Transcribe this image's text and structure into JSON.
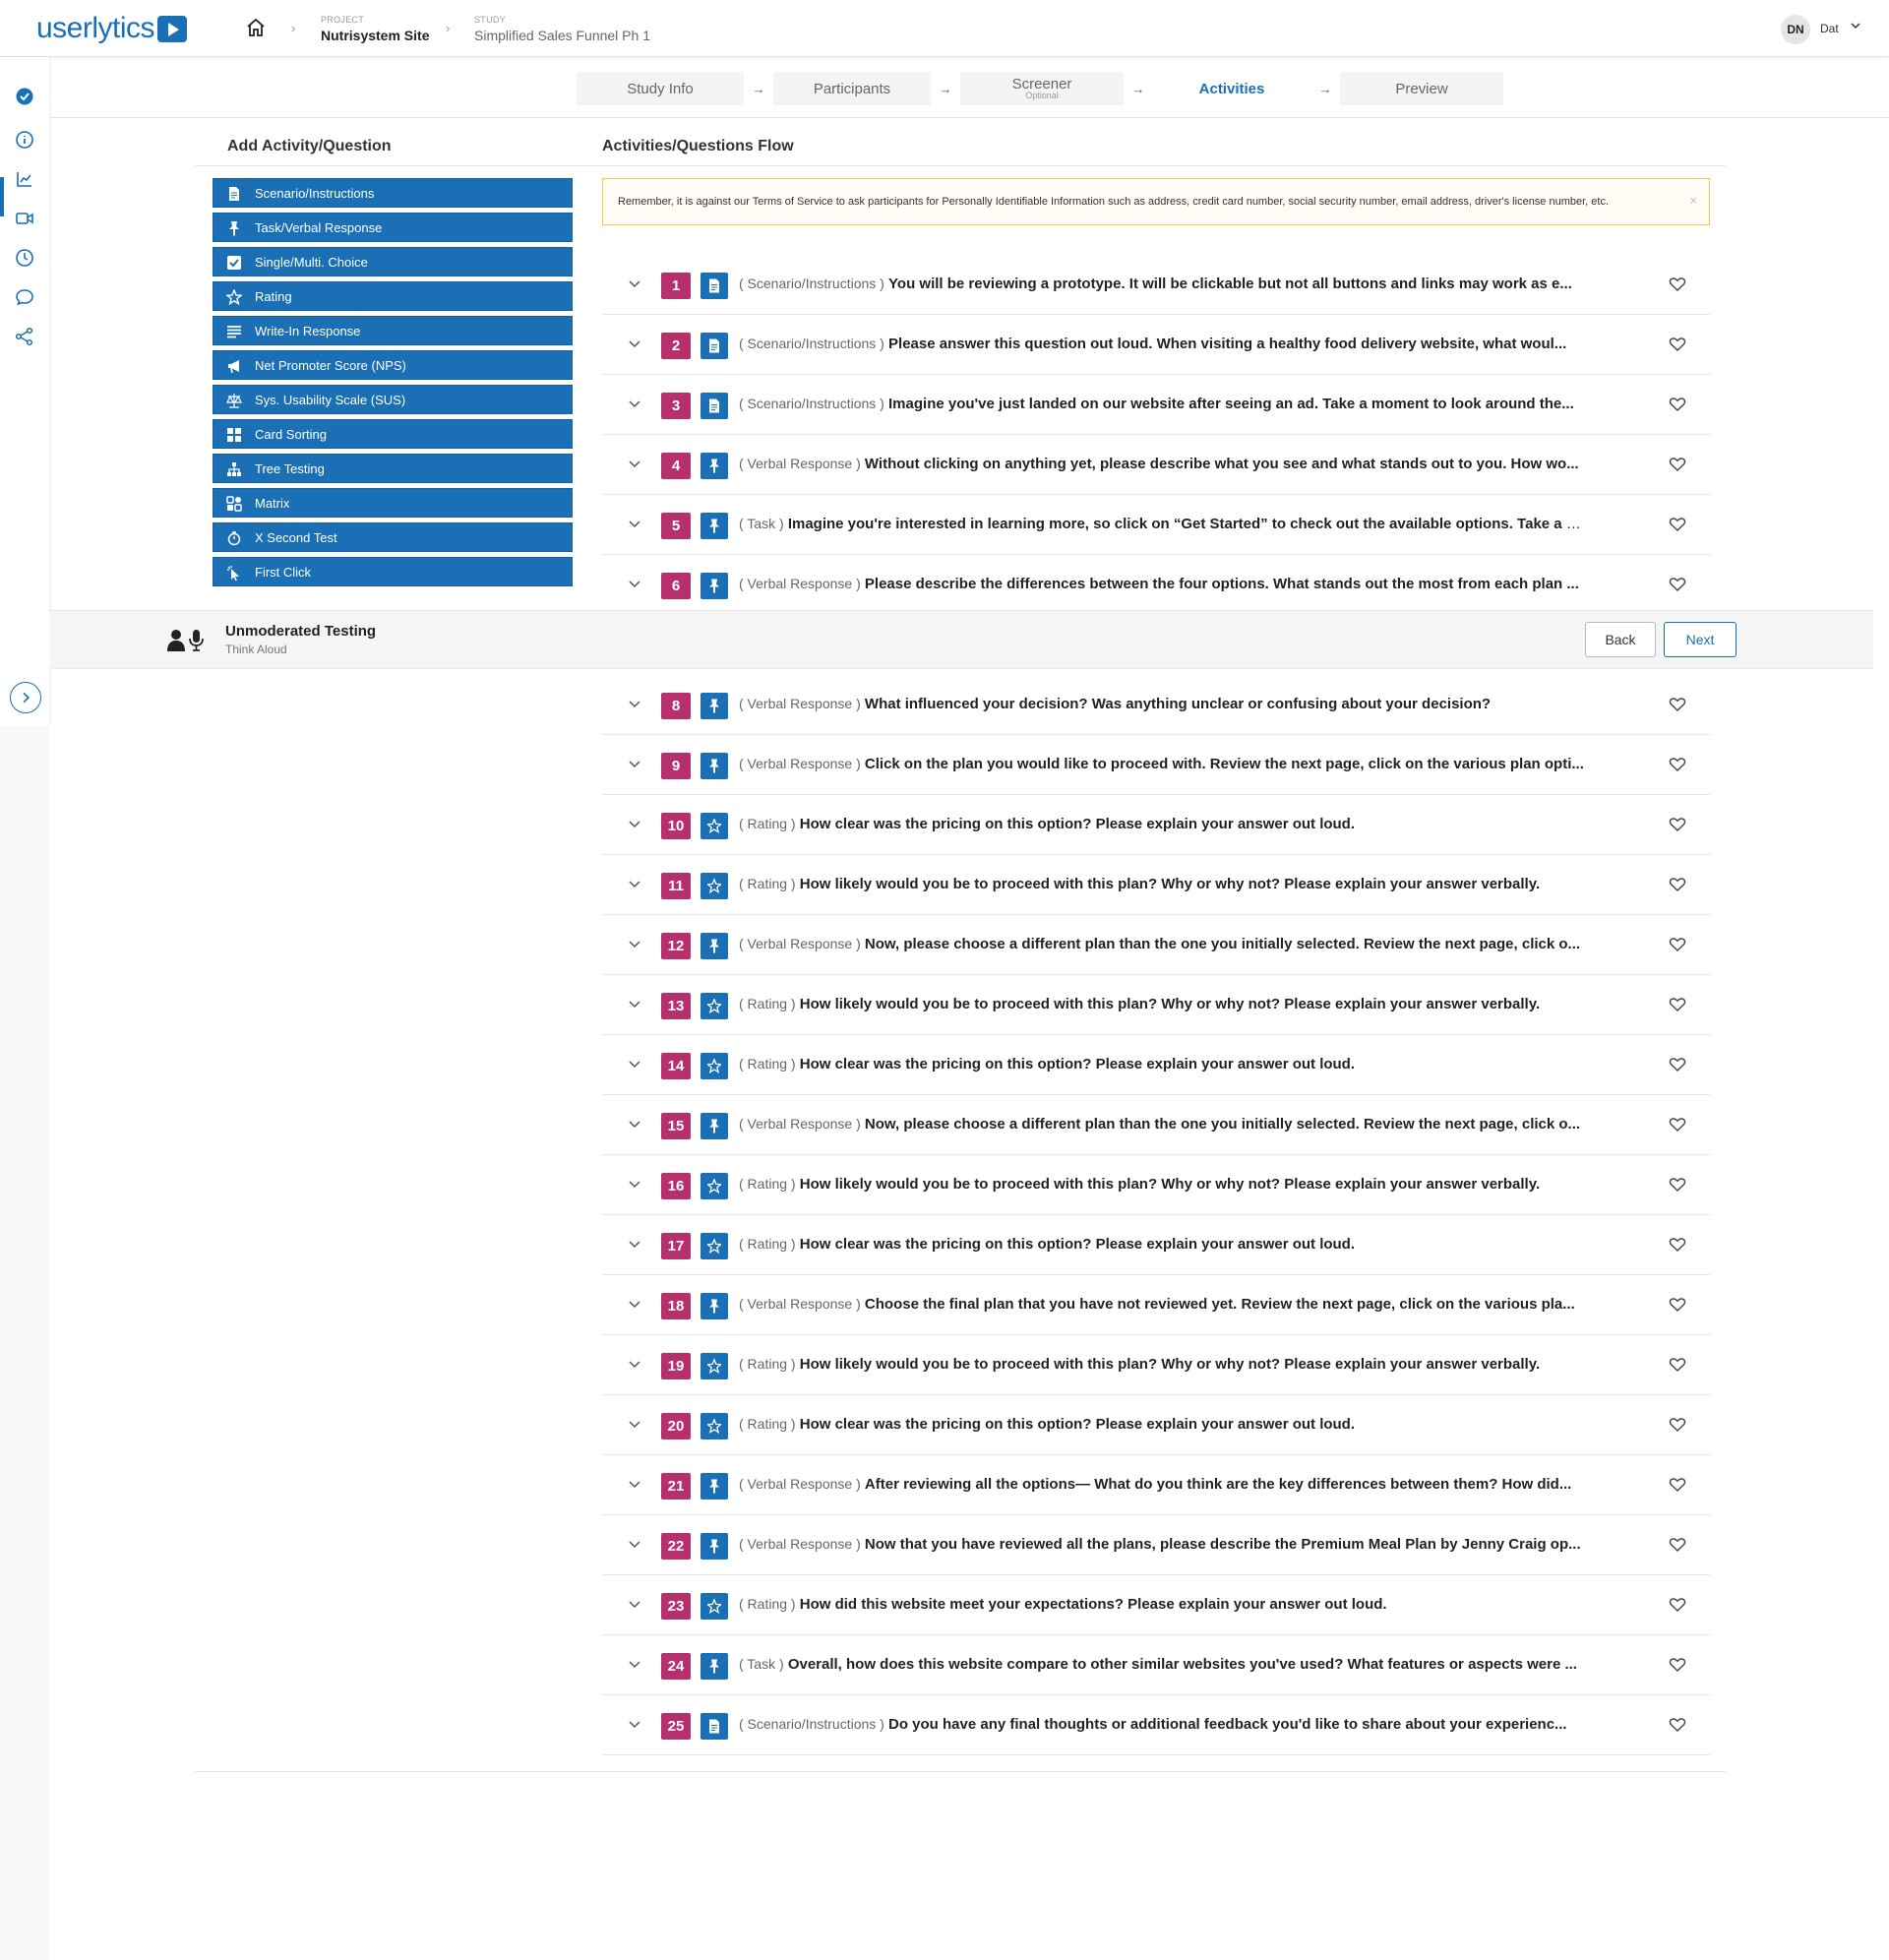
{
  "brand": {
    "logo_part1": "user",
    "logo_part2": "lytics",
    "accent": "#1a6fb5",
    "number_color": "#b6306e"
  },
  "breadcrumb": {
    "project_label": "PROJECT",
    "project_name": "Nutrisystem Site",
    "study_label": "STUDY",
    "study_name": "Simplified Sales Funnel Ph 1"
  },
  "user": {
    "initials": "DN",
    "name": "Dat"
  },
  "steps": {
    "study_info": "Study Info",
    "participants": "Participants",
    "screener": "Screener",
    "screener_sub": "Optional",
    "activities": "Activities",
    "preview": "Preview",
    "arrow": "→"
  },
  "left_panel": {
    "title": "Add Activity/Question",
    "buttons": [
      {
        "label": "Scenario/Instructions",
        "icon": "document-icon"
      },
      {
        "label": "Task/Verbal Response",
        "icon": "pin-icon"
      },
      {
        "label": "Single/Multi. Choice",
        "icon": "checkbox-icon"
      },
      {
        "label": "Rating",
        "icon": "star-icon"
      },
      {
        "label": "Write-In Response",
        "icon": "lines-icon"
      },
      {
        "label": "Net Promoter Score (NPS)",
        "icon": "megaphone-icon"
      },
      {
        "label": "Sys. Usability Scale (SUS)",
        "icon": "scale-icon"
      },
      {
        "label": "Card Sorting",
        "icon": "grid-icon"
      },
      {
        "label": "Tree Testing",
        "icon": "tree-icon"
      },
      {
        "label": "Matrix",
        "icon": "matrix-icon"
      },
      {
        "label": "X Second Test",
        "icon": "timer-icon"
      },
      {
        "label": "First Click",
        "icon": "cursor-icon"
      }
    ]
  },
  "flow": {
    "title": "Activities/Questions Flow",
    "notice": "Remember, it is against our Terms of Service to ask participants for Personally Identifiable Information such as address, credit card number, social security number, email address, driver's license number, etc.",
    "notice_close": "×",
    "items": [
      {
        "n": "1",
        "type": "( Scenario/Instructions )",
        "kind": "doc",
        "text": "You will be reviewing a prototype. It will be clickable but not all buttons and links may work as e..."
      },
      {
        "n": "2",
        "type": "( Scenario/Instructions )",
        "kind": "doc",
        "text": "Please answer this question out loud. When visiting a healthy food delivery website, what woul..."
      },
      {
        "n": "3",
        "type": "( Scenario/Instructions )",
        "kind": "doc",
        "text": "Imagine you've just landed on our website after seeing an ad. Take a moment to look around the..."
      },
      {
        "n": "4",
        "type": "( Verbal Response )",
        "kind": "pin",
        "text": "Without clicking on anything yet, please describe what you see and what stands out to you. How wo..."
      },
      {
        "n": "5",
        "type": "( Task )",
        "kind": "pin",
        "text": "Imagine you're interested in learning more, so click on “Get Started” to check out the available options. Take a m..."
      },
      {
        "n": "6",
        "type": "( Verbal Response )",
        "kind": "pin",
        "text": "Please describe the differences between the four options. What stands out the most from each plan ..."
      },
      {
        "n": "8",
        "type": "( Verbal Response )",
        "kind": "pin",
        "text": "What influenced your decision? Was anything unclear or confusing about your decision?"
      },
      {
        "n": "9",
        "type": "( Verbal Response )",
        "kind": "pin",
        "text": "Click on the plan you would like to proceed with. Review the next page, click on the various plan opti..."
      },
      {
        "n": "10",
        "type": "( Rating )",
        "kind": "star",
        "text": "How clear was the pricing on this option? Please explain your answer out loud."
      },
      {
        "n": "11",
        "type": "( Rating )",
        "kind": "star",
        "text": "How likely would you be to proceed with this plan? Why or why not? Please explain your answer verbally."
      },
      {
        "n": "12",
        "type": "( Verbal Response )",
        "kind": "pin",
        "text": "Now, please choose a different plan than the one you initially selected. Review the next page, click o..."
      },
      {
        "n": "13",
        "type": "( Rating )",
        "kind": "star",
        "text": "How likely would you be to proceed with this plan? Why or why not? Please explain your answer verbally."
      },
      {
        "n": "14",
        "type": "( Rating )",
        "kind": "star",
        "text": "How clear was the pricing on this option? Please explain your answer out loud."
      },
      {
        "n": "15",
        "type": "( Verbal Response )",
        "kind": "pin",
        "text": "Now, please choose a different plan than the one you initially selected. Review the next page, click o..."
      },
      {
        "n": "16",
        "type": "( Rating )",
        "kind": "star",
        "text": "How likely would you be to proceed with this plan? Why or why not? Please explain your answer verbally."
      },
      {
        "n": "17",
        "type": "( Rating )",
        "kind": "star",
        "text": "How clear was the pricing on this option? Please explain your answer out loud."
      },
      {
        "n": "18",
        "type": "( Verbal Response )",
        "kind": "pin",
        "text": "Choose the final plan that you have not reviewed yet. Review the next page, click on the various pla..."
      },
      {
        "n": "19",
        "type": "( Rating )",
        "kind": "star",
        "text": "How likely would you be to proceed with this plan? Why or why not? Please explain your answer verbally."
      },
      {
        "n": "20",
        "type": "( Rating )",
        "kind": "star",
        "text": "How clear was the pricing on this option? Please explain your answer out loud."
      },
      {
        "n": "21",
        "type": "( Verbal Response )",
        "kind": "pin",
        "text": "After reviewing all the options— What do you think are the key differences between them? How did..."
      },
      {
        "n": "22",
        "type": "( Verbal Response )",
        "kind": "pin",
        "text": "Now that you have reviewed all the plans, please describe the Premium Meal Plan by Jenny Craig op..."
      },
      {
        "n": "23",
        "type": "( Rating )",
        "kind": "star",
        "text": "How did this website meet your expectations? Please explain your answer out loud."
      },
      {
        "n": "24",
        "type": "( Task )",
        "kind": "pin",
        "text": "Overall, how does this website compare to other similar websites you've used? What features or aspects were ..."
      },
      {
        "n": "25",
        "type": "( Scenario/Instructions )",
        "kind": "doc",
        "text": "Do you have any final thoughts or additional feedback you'd like to share about your experienc..."
      }
    ]
  },
  "footer_bar": {
    "title": "Unmoderated Testing",
    "subtitle": "Think Aloud",
    "back": "Back",
    "next": "Next"
  }
}
